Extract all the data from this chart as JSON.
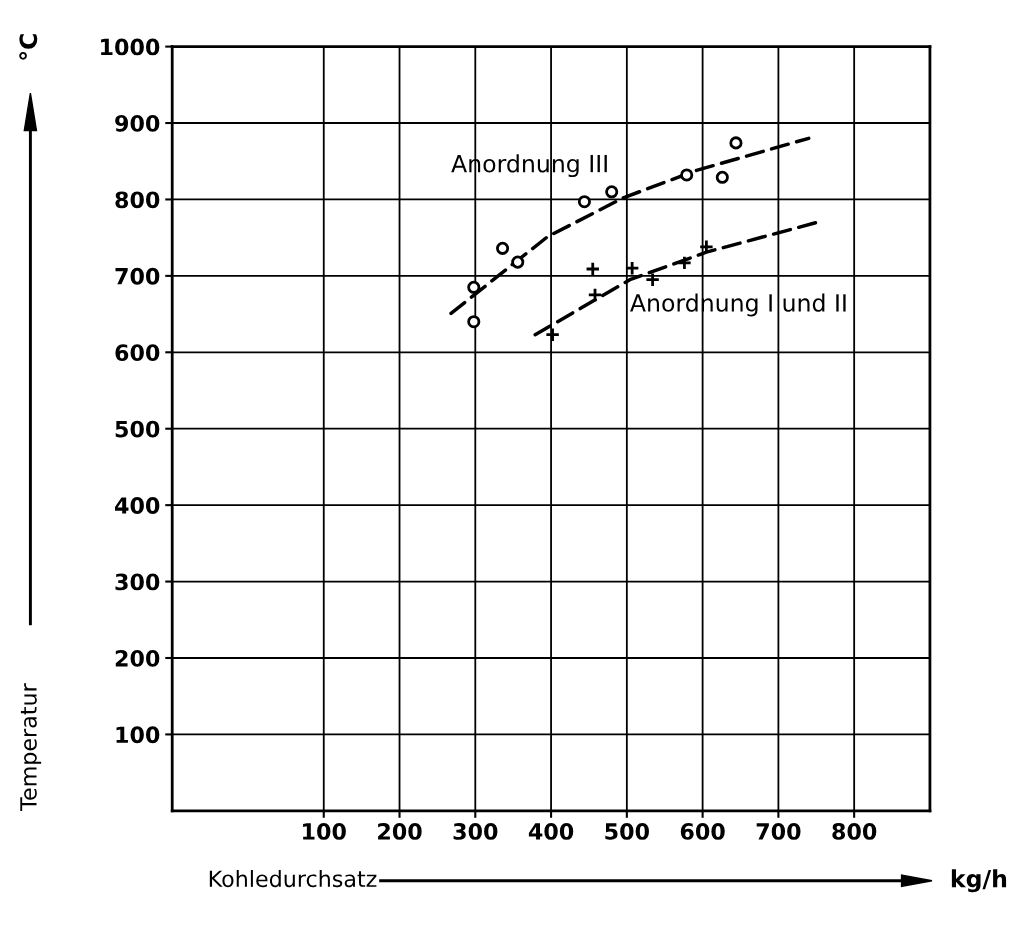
{
  "chart_data": {
    "type": "scatter",
    "xlabel": "Kohledurchsatz",
    "ylabel": "Temperatur",
    "annotations": [
      "kg/h",
      "°C"
    ],
    "xlim": [
      -100,
      900
    ],
    "xticks": [
      100,
      200,
      300,
      400,
      500,
      600,
      700,
      800
    ],
    "ylim": [
      0,
      1000
    ],
    "yticks": [
      100,
      200,
      300,
      400,
      500,
      600,
      700,
      800,
      900,
      1000
    ],
    "grid": true,
    "legend": false,
    "series": [
      {
        "marker": "circle",
        "color": "#000000",
        "x": [
          298,
          298,
          336,
          356,
          444,
          480,
          579,
          626,
          644
        ],
        "values": [
          685,
          640,
          736,
          718,
          797,
          810,
          832,
          829,
          874
        ]
      },
      {
        "marker": "cross",
        "color": "#000000",
        "x": [
          402,
          455,
          458,
          507,
          534,
          576,
          605
        ],
        "values": [
          623,
          709,
          675,
          710,
          695,
          717,
          738
        ]
      },
      {
        "type": "line",
        "name": "Anordnung III",
        "line_style": "dashed",
        "color": "#000000",
        "x": [
          268,
          395,
          495,
          592,
          740
        ],
        "values": [
          651,
          751,
          802,
          838,
          880
        ]
      },
      {
        "type": "line",
        "name": "Anordnung I und II",
        "line_style": "dashed",
        "color": "#000000",
        "x": [
          379,
          504,
          605,
          751
        ],
        "values": [
          623,
          695,
          731,
          770
        ]
      }
    ]
  }
}
